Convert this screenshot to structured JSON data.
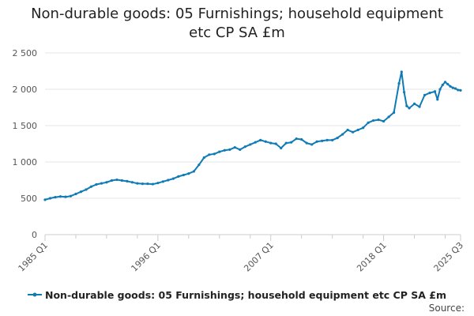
{
  "chart_data": {
    "type": "line",
    "title_lines": [
      "Non-durable goods: 05 Furnishings; household equipment",
      "etc CP SA £m"
    ],
    "xlabel": "",
    "ylabel": "",
    "ylim": [
      0,
      2500
    ],
    "yticks": [
      0,
      500,
      1000,
      1500,
      2000,
      2500
    ],
    "ytick_labels": [
      "0",
      "500",
      "1 000",
      "1 500",
      "2 000",
      "2 500"
    ],
    "xlim": [
      1985.0,
      2025.5
    ],
    "xticks": [
      1985.0,
      1996.0,
      2007.0,
      2018.0,
      2025.5
    ],
    "xtick_labels": [
      "1985 Q1",
      "1996 Q1",
      "2007 Q1",
      "2018 Q1",
      "2025 Q3"
    ],
    "minor_xticks": [
      1988.0,
      1991.0,
      1994.0,
      1999.0,
      2002.0,
      2005.0,
      2010.0,
      2013.0,
      2016.0,
      2021.0,
      2024.0
    ],
    "grid": true,
    "legend_position": "bottom",
    "series": [
      {
        "name": "Non-durable goods: 05 Furnishings; household equipment etc CP SA £m",
        "color": "#0f7bb6",
        "x": [
          1985.0,
          1985.5,
          1986.0,
          1986.5,
          1987.0,
          1987.5,
          1988.0,
          1988.5,
          1989.0,
          1989.5,
          1990.0,
          1990.5,
          1991.0,
          1991.5,
          1992.0,
          1992.5,
          1993.0,
          1993.5,
          1994.0,
          1994.5,
          1995.0,
          1995.5,
          1996.0,
          1996.5,
          1997.0,
          1997.5,
          1998.0,
          1998.5,
          1999.0,
          1999.5,
          2000.0,
          2000.5,
          2001.0,
          2001.5,
          2002.0,
          2002.5,
          2003.0,
          2003.5,
          2004.0,
          2004.5,
          2005.0,
          2005.5,
          2006.0,
          2006.5,
          2007.0,
          2007.5,
          2008.0,
          2008.5,
          2009.0,
          2009.5,
          2010.0,
          2010.5,
          2011.0,
          2011.5,
          2012.0,
          2012.5,
          2013.0,
          2013.5,
          2014.0,
          2014.5,
          2015.0,
          2015.5,
          2016.0,
          2016.5,
          2017.0,
          2017.5,
          2018.0,
          2018.5,
          2019.0,
          2019.5,
          2019.75,
          2020.0,
          2020.25,
          2020.5,
          2021.0,
          2021.5,
          2022.0,
          2022.5,
          2023.0,
          2023.25,
          2023.5,
          2023.75,
          2024.0,
          2024.25,
          2024.5,
          2024.75,
          2025.0,
          2025.25,
          2025.5
        ],
        "values": [
          480,
          500,
          515,
          525,
          520,
          530,
          560,
          590,
          620,
          660,
          690,
          705,
          720,
          745,
          755,
          745,
          735,
          720,
          705,
          700,
          700,
          695,
          710,
          730,
          750,
          770,
          800,
          820,
          840,
          870,
          960,
          1060,
          1100,
          1110,
          1140,
          1160,
          1170,
          1200,
          1170,
          1210,
          1240,
          1270,
          1300,
          1280,
          1260,
          1250,
          1190,
          1260,
          1270,
          1320,
          1310,
          1260,
          1240,
          1280,
          1290,
          1300,
          1300,
          1330,
          1380,
          1440,
          1410,
          1440,
          1470,
          1540,
          1570,
          1580,
          1560,
          1620,
          1680,
          2080,
          2240,
          1960,
          1770,
          1740,
          1800,
          1760,
          1920,
          1950,
          1970,
          1860,
          2000,
          2060,
          2100,
          2070,
          2040,
          2020,
          2010,
          1990,
          1985
        ]
      }
    ]
  },
  "source_label": "Source:"
}
